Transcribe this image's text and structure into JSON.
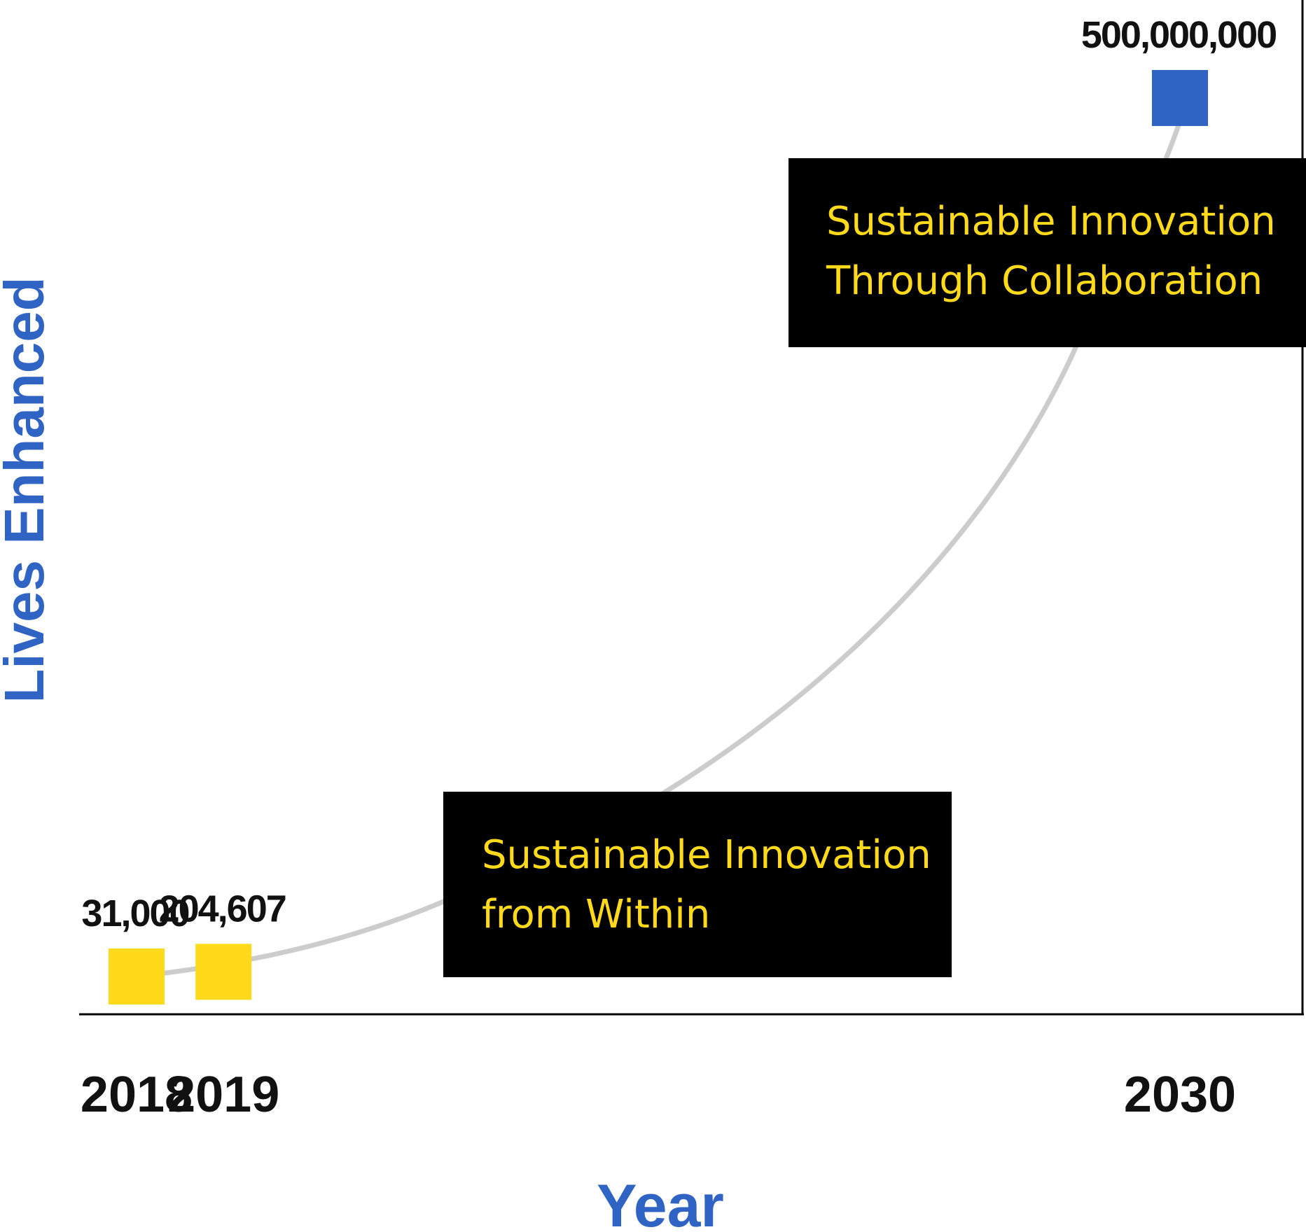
{
  "chart_data": {
    "type": "line",
    "title": "",
    "xlabel": "Year",
    "ylabel": "Lives Enhanced",
    "x": [
      2018,
      2019,
      2030
    ],
    "x_tick_labels": [
      "2018",
      "2019",
      "2030"
    ],
    "series": [
      {
        "values": [
          31000,
          204607,
          500000000
        ],
        "value_labels": [
          "31,000",
          "204,607",
          "500,000,000"
        ],
        "point_colors": [
          "#FEDA1A",
          "#FEDA1A",
          "#3064C4"
        ]
      }
    ],
    "annotations": [
      {
        "lines": [
          "Sustainable Innovation",
          "from Within"
        ]
      },
      {
        "lines": [
          "Sustainable Innovation",
          "Through Collaboration"
        ]
      }
    ],
    "grid": false,
    "legend": "none"
  },
  "colors": {
    "axis_title": "#3064C4",
    "curve": "#CCCCCC",
    "annotation_bg": "#000000",
    "annotation_text": "#FEDA1A",
    "axis_line": "#000000",
    "label_text": "#111111"
  }
}
